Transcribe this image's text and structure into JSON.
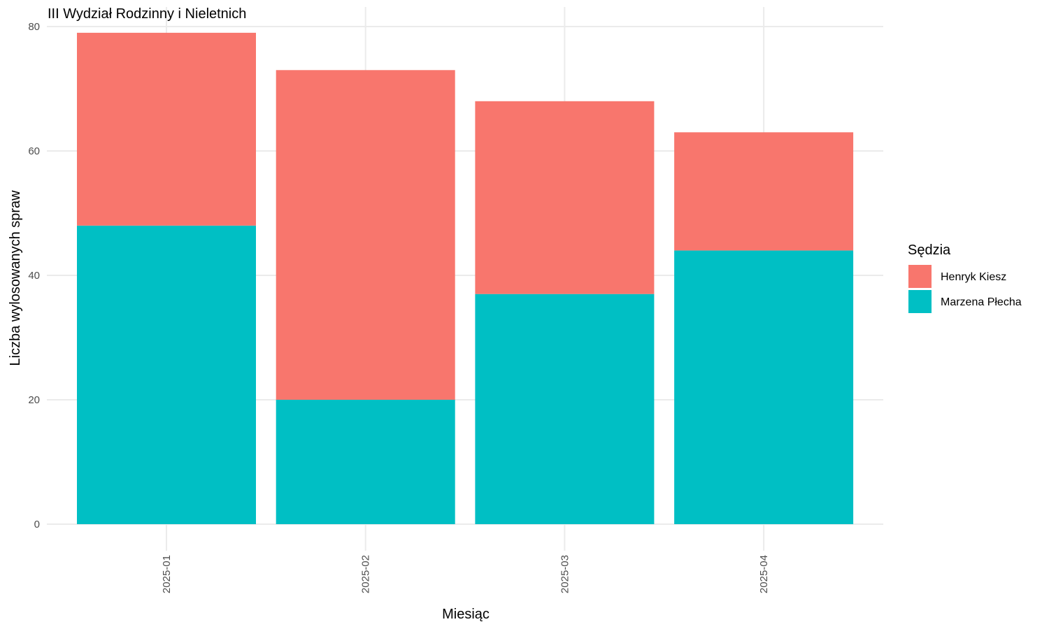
{
  "chart_data": {
    "type": "bar",
    "stacked": true,
    "title": "III Wydział Rodzinny i Nieletnich",
    "xlabel": "Miesiąc",
    "ylabel": "Liczba wylosowanych spraw",
    "categories": [
      "2025-01",
      "2025-02",
      "2025-03",
      "2025-04"
    ],
    "series": [
      {
        "name": "Marzena Płecha",
        "values": [
          48,
          20,
          37,
          44
        ],
        "color": "#00BFC4"
      },
      {
        "name": "Henryk Kiesz",
        "values": [
          31,
          53,
          31,
          19
        ],
        "color": "#F8766D"
      }
    ],
    "ylim": [
      0,
      80
    ],
    "yticks": [
      0,
      20,
      40,
      60,
      80
    ],
    "grid": true,
    "legend": {
      "title": "Sędzia",
      "position": "right",
      "items": [
        "Henryk Kiesz",
        "Marzena Płecha"
      ]
    }
  }
}
